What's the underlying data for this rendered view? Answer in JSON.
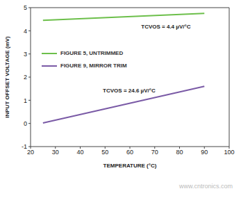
{
  "chart_data": {
    "type": "line",
    "x_label": "TEMPERATURE (°C)",
    "y_label": "INPUT OFFSET VOLTAGE (mV)",
    "x": [
      25,
      90
    ],
    "series": [
      {
        "name": "FIGURE 5, UNTRIMMED",
        "color": "#6cbf4a",
        "values": [
          4.45,
          4.75
        ]
      },
      {
        "name": "FIGURE 9, MIRROR TRIM",
        "color": "#7a5aa6",
        "values": [
          0.02,
          1.6
        ]
      }
    ],
    "xlim": [
      20,
      100
    ],
    "xticks": [
      20,
      30,
      40,
      50,
      60,
      70,
      80,
      90,
      100
    ],
    "ylim": [
      -1,
      5
    ],
    "yticks": [
      -1,
      0,
      1,
      2,
      3,
      4,
      5
    ],
    "grid": false,
    "legend": "upper left",
    "annotations": [
      {
        "text": "TCVOS = 4.4 µV/°C",
        "x": 74.5,
        "y": 4.2
      },
      {
        "text": "TCVOS = 24.6 µV/°C",
        "x": 59.7,
        "y": 1.43
      }
    ],
    "watermark": "www.cntronics.com"
  }
}
